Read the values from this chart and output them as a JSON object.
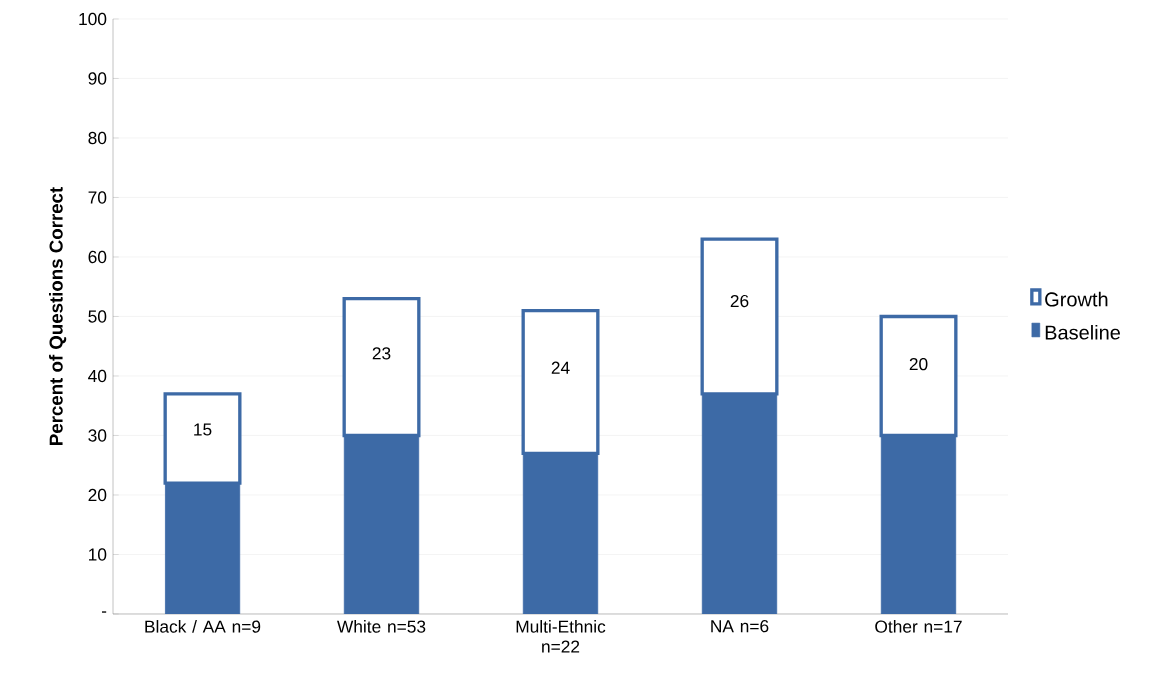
{
  "chart_data": {
    "type": "bar",
    "stacked": true,
    "ylabel": "**Percent of Questions Correct**",
    "categories": [
      "Black / AA n=9",
      "White n=53",
      "Multi-Ethnic n=22",
      "NA n=6",
      "Other n=17"
    ],
    "series": [
      {
        "name": "Baseline",
        "color": "#3d6aa6",
        "values": [
          22,
          30,
          27,
          37,
          30
        ]
      },
      {
        "name": "Growth",
        "color": "#ffffff",
        "values": [
          15,
          23,
          24,
          26,
          20
        ],
        "value_labels": [
          "15",
          "23",
          "24",
          "26",
          "20"
        ]
      }
    ],
    "ylim": [
      0,
      100
    ],
    "yticks": [
      {
        "value": 0,
        "label": "-"
      },
      10,
      20,
      30,
      40,
      50,
      60,
      70,
      80,
      90,
      100
    ],
    "grid": "y",
    "legend": "right"
  }
}
